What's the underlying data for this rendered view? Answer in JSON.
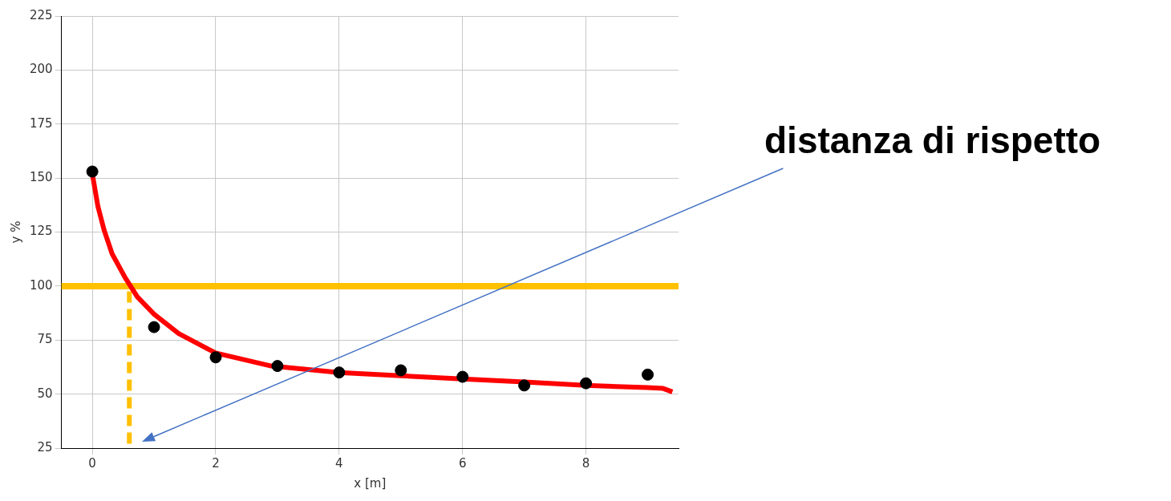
{
  "chart_data": {
    "type": "scatter",
    "xlabel": "x [m]",
    "ylabel": "y %",
    "xlim": [
      -0.5,
      9.5
    ],
    "ylim": [
      25,
      225
    ],
    "xticks": [
      0,
      2,
      4,
      6,
      8
    ],
    "yticks": [
      25,
      50,
      75,
      100,
      125,
      150,
      175,
      200,
      225
    ],
    "grid": true,
    "legend": false,
    "series": [
      {
        "type": "scatter",
        "color": "#000000",
        "marker": "circle",
        "x": [
          0,
          1,
          2,
          3,
          4,
          5,
          6,
          7,
          8,
          9
        ],
        "values": [
          153,
          81,
          67,
          63,
          60,
          61,
          58,
          54,
          55,
          59
        ]
      },
      {
        "type": "line",
        "color": "#ff0000",
        "marker": "none",
        "line_style": "solid",
        "x": [
          0,
          0.09,
          0.19,
          0.32,
          0.53,
          0.73,
          1,
          1.4,
          2,
          2.9,
          4,
          5,
          6,
          7,
          8,
          9,
          9.25,
          9.4
        ],
        "values": [
          152,
          137,
          126,
          115,
          104,
          95,
          87,
          78,
          69,
          63,
          60,
          58.5,
          57,
          55.6,
          54,
          53,
          52.6,
          51
        ]
      },
      {
        "type": "line",
        "color": "#ffc000",
        "marker": "none",
        "line_style": "dashed",
        "x": [
          0.6,
          0.6
        ],
        "values": [
          27,
          100
        ]
      }
    ],
    "ref_lines": [
      {
        "axis": "y",
        "value": 100,
        "color": "#ffc000"
      }
    ],
    "annotations": [
      "distanza di rispetto"
    ]
  }
}
